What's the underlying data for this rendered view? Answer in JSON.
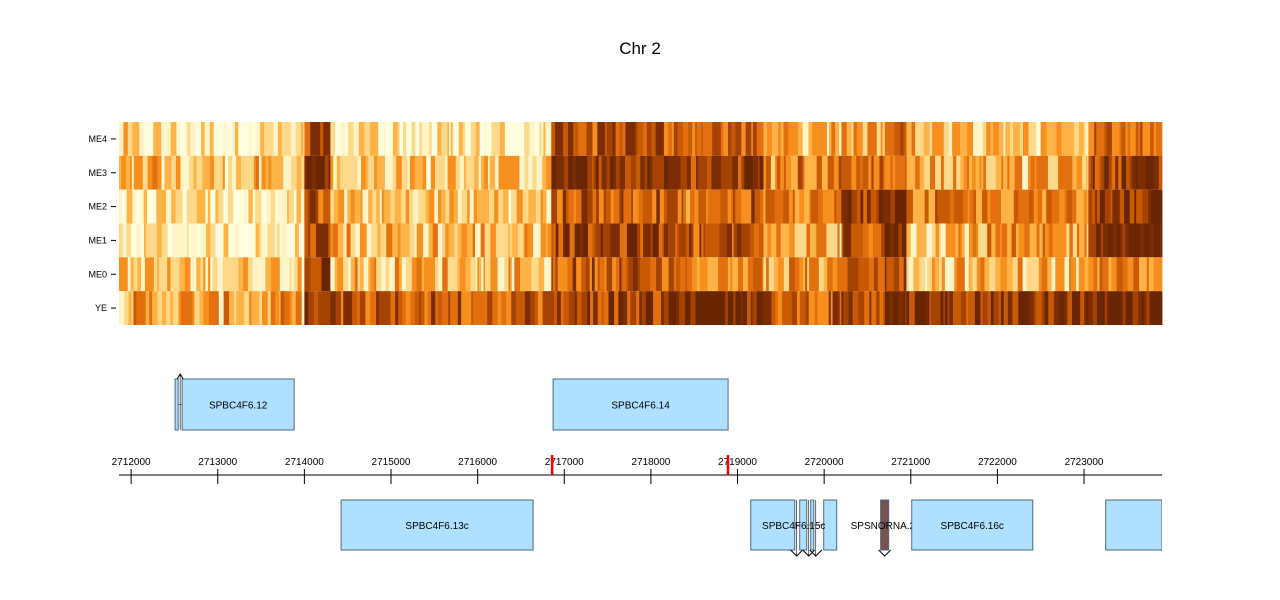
{
  "chart_data": {
    "type": "heatmap",
    "title": "Chr 2",
    "xlabel": "",
    "ylabel": "",
    "genomic_range": [
      2711860,
      2723900
    ],
    "rows": [
      "ME4",
      "ME3",
      "ME2",
      "ME1",
      "ME0",
      "YE"
    ],
    "colormap": [
      "#ffffe0",
      "#fff5c8",
      "#ffd98a",
      "#ffb347",
      "#f78f1e",
      "#e3700f",
      "#c85a06",
      "#a54303",
      "#7c2d04",
      "#6a2503"
    ],
    "x_axis": {
      "ticks": [
        2712000,
        2713000,
        2714000,
        2715000,
        2716000,
        2717000,
        2718000,
        2719000,
        2720000,
        2721000,
        2722000,
        2723000
      ],
      "tick_labels": [
        "2712000",
        "2713000",
        "2714000",
        "2715000",
        "2716000",
        "2717000",
        "2718000",
        "2719000",
        "2720000",
        "2721000",
        "2722000",
        "2723000"
      ]
    },
    "markers": [
      {
        "position": 2716860,
        "color": "#ff0000"
      },
      {
        "position": 2718890,
        "color": "#ff0000"
      }
    ],
    "heatmap_segments": [
      {
        "start": 2711860,
        "end": 2714000,
        "levels": [
          1.5,
          2.5,
          1.0,
          1.2,
          2.5,
          3.5
        ]
      },
      {
        "start": 2714000,
        "end": 2714300,
        "levels": [
          7.0,
          8.5,
          6.0,
          7.0,
          7.5,
          7.5
        ]
      },
      {
        "start": 2714300,
        "end": 2716850,
        "levels": [
          1.5,
          2.5,
          2.5,
          3.0,
          3.0,
          6.0
        ]
      },
      {
        "start": 2716850,
        "end": 2718150,
        "levels": [
          6.5,
          8.0,
          6.0,
          7.0,
          6.0,
          7.0
        ]
      },
      {
        "start": 2718150,
        "end": 2719300,
        "levels": [
          5.5,
          7.0,
          5.5,
          6.0,
          5.0,
          8.5
        ]
      },
      {
        "start": 2719300,
        "end": 2720200,
        "levels": [
          2.5,
          4.5,
          4.5,
          3.5,
          4.0,
          6.0
        ]
      },
      {
        "start": 2720200,
        "end": 2720700,
        "levels": [
          3.5,
          4.5,
          7.0,
          6.5,
          5.5,
          7.0
        ]
      },
      {
        "start": 2720700,
        "end": 2720950,
        "levels": [
          6.0,
          6.0,
          9.0,
          8.5,
          7.0,
          9.0
        ]
      },
      {
        "start": 2720950,
        "end": 2723050,
        "levels": [
          2.5,
          3.5,
          4.5,
          3.5,
          3.0,
          7.5
        ]
      },
      {
        "start": 2723050,
        "end": 2723900,
        "levels": [
          5.0,
          7.0,
          7.5,
          8.5,
          4.5,
          8.5
        ]
      }
    ],
    "genes": [
      {
        "name": "SPBC4F6.12",
        "strand": "+",
        "track": "top",
        "exons": [
          [
            2712508,
            2712543
          ],
          [
            2712589,
            2713882
          ]
        ],
        "label_visible": true
      },
      {
        "name": "SPBC4F6.14",
        "strand": "+",
        "track": "top",
        "exons": [
          [
            2716871,
            2718891
          ]
        ],
        "label_visible": true
      },
      {
        "name": "SPBC4F6.13c",
        "strand": "-",
        "track": "bottom",
        "exons": [
          [
            2714424,
            2716640
          ]
        ],
        "label_visible": true
      },
      {
        "name": "SPBC4F6.15c",
        "strand": "-",
        "track": "bottom",
        "exons": [
          [
            2719153,
            2719660
          ],
          [
            2719718,
            2719799
          ],
          [
            2719845,
            2719880
          ],
          [
            2719995,
            2720145
          ]
        ],
        "label_visible": true
      },
      {
        "name": "SPSNORNA.26",
        "strand": "-",
        "track": "bottom",
        "type": "ncRNA",
        "exons": [
          [
            2720652,
            2720745
          ]
        ],
        "label_visible": true
      },
      {
        "name": "SPBC4F6.16c",
        "strand": "-",
        "track": "bottom",
        "exons": [
          [
            2721011,
            2722408
          ]
        ],
        "label_visible": true
      },
      {
        "name": "",
        "strand": "-",
        "track": "bottom",
        "exons": [
          [
            2723250,
            2723900
          ]
        ],
        "label_visible": false
      }
    ],
    "colors": {
      "gene_fill": "#b0e0ff",
      "gene_border": "#4a6a80",
      "ncrna_fill": "#7a5050",
      "axis": "#000000"
    }
  }
}
